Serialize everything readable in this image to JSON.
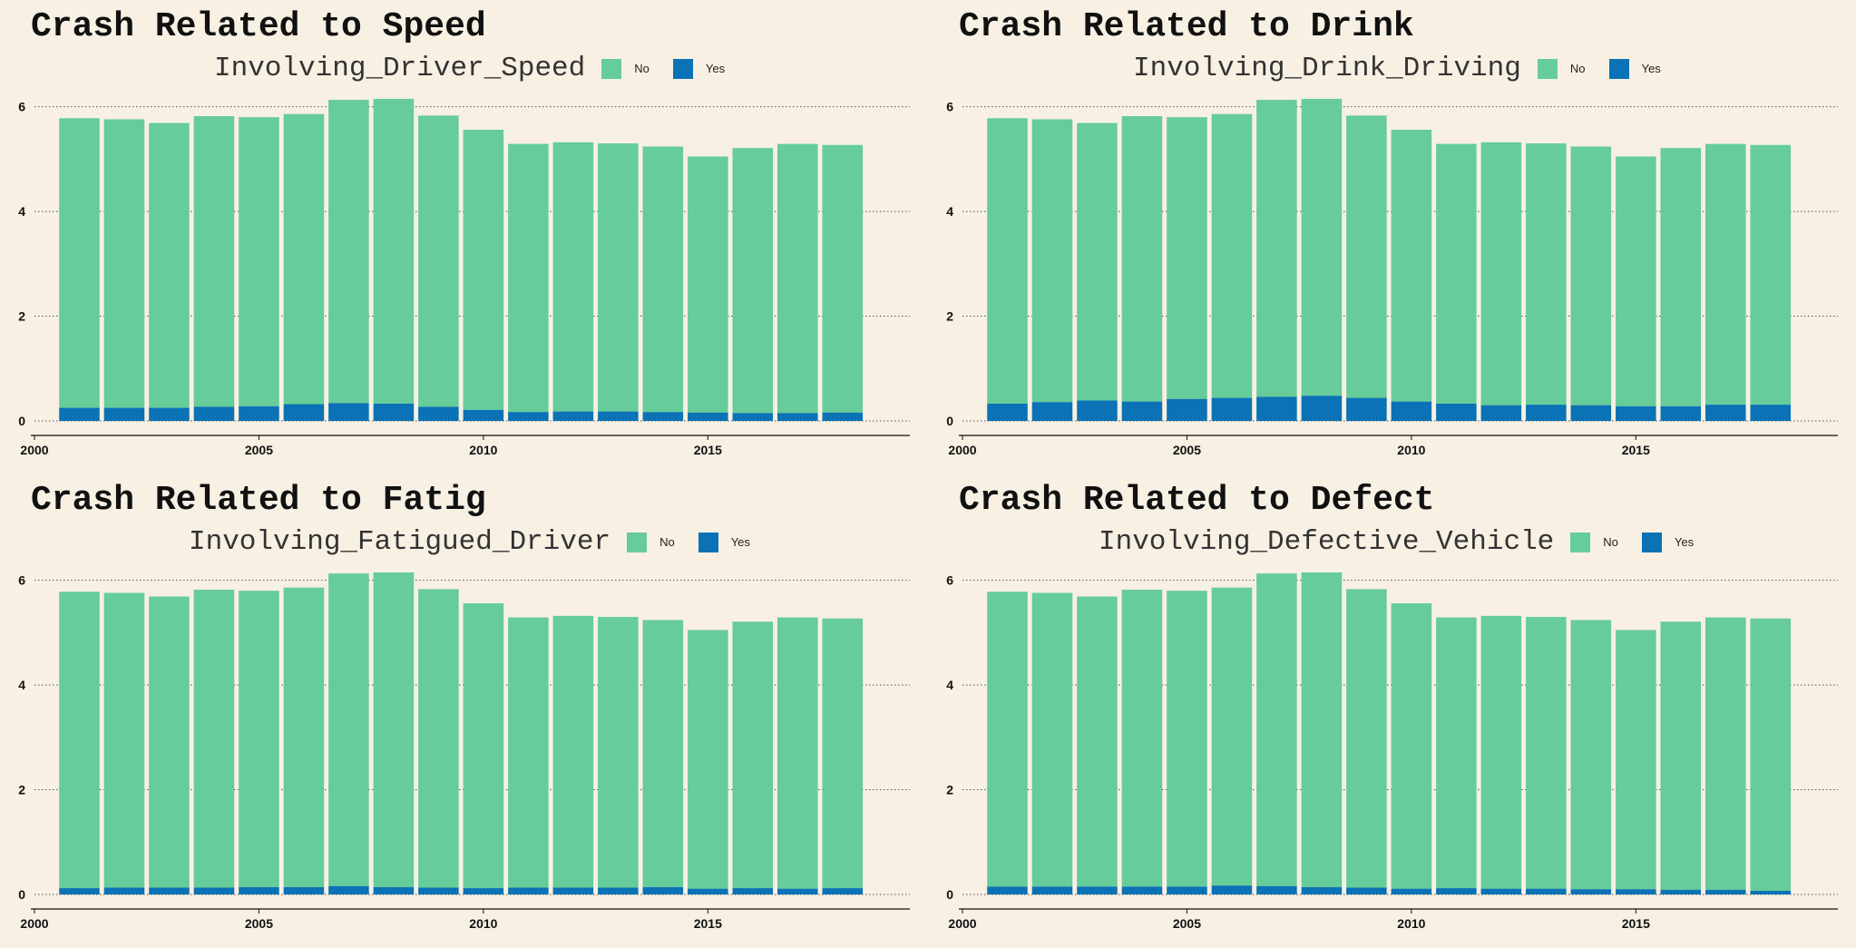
{
  "colors": {
    "No": "#66cc99",
    "Yes": "#0a72b5",
    "background": "#f7f0e3"
  },
  "chart_data": [
    {
      "type": "bar",
      "stacked": true,
      "title": "Crash Related to Speed",
      "legend_title": "Involving_Driver_Speed",
      "legend_labels": [
        "No",
        "Yes"
      ],
      "legend_position": "top",
      "x": [
        2001,
        2002,
        2003,
        2004,
        2005,
        2006,
        2007,
        2008,
        2009,
        2010,
        2011,
        2012,
        2013,
        2014,
        2015,
        2016,
        2017,
        2018
      ],
      "series": [
        {
          "name": "Yes",
          "values": [
            0.25,
            0.25,
            0.25,
            0.27,
            0.28,
            0.32,
            0.34,
            0.33,
            0.27,
            0.21,
            0.17,
            0.18,
            0.18,
            0.17,
            0.16,
            0.15,
            0.15,
            0.16
          ]
        },
        {
          "name": "No",
          "values": [
            5.53,
            5.51,
            5.44,
            5.55,
            5.52,
            5.54,
            5.79,
            5.82,
            5.56,
            5.35,
            5.12,
            5.14,
            5.12,
            5.07,
            4.89,
            5.06,
            5.14,
            5.11
          ]
        }
      ],
      "xticks": [
        2000,
        2005,
        2010,
        2015
      ],
      "yticks": [
        0,
        2,
        4,
        6
      ],
      "xlim": [
        2000,
        2019.5
      ],
      "ylim": [
        0,
        6.6
      ],
      "grid": "horizontal dotted"
    },
    {
      "type": "bar",
      "stacked": true,
      "title": "Crash Related to Drink",
      "legend_title": "Involving_Drink_Driving",
      "legend_labels": [
        "No",
        "Yes"
      ],
      "legend_position": "top",
      "x": [
        2001,
        2002,
        2003,
        2004,
        2005,
        2006,
        2007,
        2008,
        2009,
        2010,
        2011,
        2012,
        2013,
        2014,
        2015,
        2016,
        2017,
        2018
      ],
      "series": [
        {
          "name": "Yes",
          "values": [
            0.33,
            0.36,
            0.39,
            0.37,
            0.42,
            0.44,
            0.46,
            0.48,
            0.44,
            0.37,
            0.33,
            0.3,
            0.31,
            0.3,
            0.28,
            0.28,
            0.31,
            0.31
          ]
        },
        {
          "name": "No",
          "values": [
            5.45,
            5.4,
            5.3,
            5.45,
            5.38,
            5.42,
            5.67,
            5.67,
            5.39,
            5.19,
            4.96,
            5.02,
            4.99,
            4.94,
            4.77,
            4.93,
            4.98,
            4.96
          ]
        }
      ],
      "xticks": [
        2000,
        2005,
        2010,
        2015
      ],
      "yticks": [
        0,
        2,
        4,
        6
      ],
      "xlim": [
        2000,
        2019.5
      ],
      "ylim": [
        0,
        6.6
      ],
      "grid": "horizontal dotted"
    },
    {
      "type": "bar",
      "stacked": true,
      "title": "Crash Related to Fatig",
      "legend_title": "Involving_Fatigued_Driver",
      "legend_labels": [
        "No",
        "Yes"
      ],
      "legend_position": "top",
      "x": [
        2001,
        2002,
        2003,
        2004,
        2005,
        2006,
        2007,
        2008,
        2009,
        2010,
        2011,
        2012,
        2013,
        2014,
        2015,
        2016,
        2017,
        2018
      ],
      "series": [
        {
          "name": "Yes",
          "values": [
            0.12,
            0.13,
            0.13,
            0.13,
            0.14,
            0.14,
            0.16,
            0.14,
            0.13,
            0.12,
            0.13,
            0.13,
            0.13,
            0.14,
            0.11,
            0.12,
            0.11,
            0.12
          ]
        },
        {
          "name": "No",
          "values": [
            5.66,
            5.63,
            5.56,
            5.69,
            5.66,
            5.72,
            5.97,
            6.01,
            5.7,
            5.44,
            5.16,
            5.19,
            5.17,
            5.1,
            4.94,
            5.09,
            5.18,
            5.15
          ]
        }
      ],
      "xticks": [
        2000,
        2005,
        2010,
        2015
      ],
      "yticks": [
        0,
        2,
        4,
        6
      ],
      "xlim": [
        2000,
        2019.5
      ],
      "ylim": [
        0,
        6.6
      ],
      "grid": "horizontal dotted"
    },
    {
      "type": "bar",
      "stacked": true,
      "title": "Crash Related to Defect",
      "legend_title": "Involving_Defective_Vehicle",
      "legend_labels": [
        "No",
        "Yes"
      ],
      "legend_position": "top",
      "x": [
        2001,
        2002,
        2003,
        2004,
        2005,
        2006,
        2007,
        2008,
        2009,
        2010,
        2011,
        2012,
        2013,
        2014,
        2015,
        2016,
        2017,
        2018
      ],
      "series": [
        {
          "name": "Yes",
          "values": [
            0.15,
            0.15,
            0.15,
            0.15,
            0.15,
            0.17,
            0.16,
            0.14,
            0.13,
            0.11,
            0.12,
            0.11,
            0.11,
            0.1,
            0.1,
            0.09,
            0.09,
            0.07
          ]
        },
        {
          "name": "No",
          "values": [
            5.63,
            5.61,
            5.54,
            5.67,
            5.65,
            5.69,
            5.97,
            6.01,
            5.7,
            5.45,
            5.17,
            5.21,
            5.19,
            5.14,
            4.95,
            5.12,
            5.2,
            5.2
          ]
        }
      ],
      "xticks": [
        2000,
        2005,
        2010,
        2015
      ],
      "yticks": [
        0,
        2,
        4,
        6
      ],
      "xlim": [
        2000,
        2019.5
      ],
      "ylim": [
        0,
        6.6
      ],
      "grid": "horizontal dotted"
    }
  ]
}
